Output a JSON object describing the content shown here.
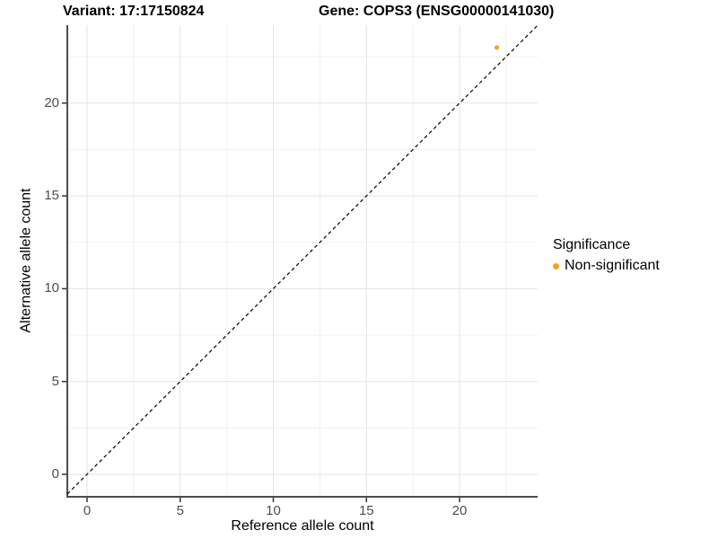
{
  "chart_data": {
    "type": "scatter",
    "titles": {
      "left": "Variant: 17:17150824",
      "right": "Gene: COPS3 (ENSG00000141030)"
    },
    "xlabel": "Reference allele count",
    "ylabel": "Alternative allele count",
    "x_ticks": [
      0,
      5,
      10,
      15,
      20
    ],
    "y_ticks": [
      0,
      5,
      10,
      15,
      20
    ],
    "x_range": [
      -1.06,
      24.19
    ],
    "y_range": [
      -1.21,
      24.2
    ],
    "grid": "major+minor",
    "series": [
      {
        "name": "Non-significant",
        "color": "#F8A01E",
        "points": [
          [
            22,
            23
          ]
        ]
      }
    ],
    "reference_line": {
      "kind": "identity",
      "style": "dashed",
      "color": "#000000"
    },
    "legend": {
      "title": "Significance",
      "position": "right",
      "entries": [
        {
          "label": "Non-significant",
          "color": "#F8A01E"
        }
      ]
    },
    "colors": {
      "grid_major": "#E3E3E3",
      "grid_minor": "#F1F1F1",
      "axis_line": "#4D4D4D",
      "tick": "#333333",
      "background": "#FFFFFF"
    }
  }
}
